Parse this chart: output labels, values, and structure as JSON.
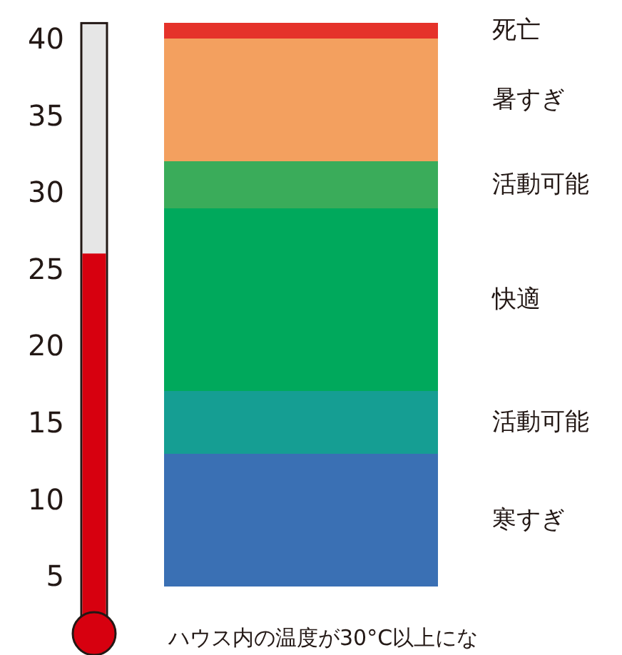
{
  "chart_data": [
    {
      "type": "bar",
      "categories": [
        null
      ],
      "values": [
        26
      ],
      "color": "#d7000f",
      "ylim": [
        2,
        41
      ],
      "yticks": [
        5,
        10,
        15,
        20,
        25,
        30,
        35,
        40
      ]
    },
    {
      "type": "other",
      "categories": [
        "死亡",
        "暑すぎ",
        "活動可能",
        "快適",
        "活動可能",
        "寒すぎ"
      ],
      "colors": [
        "#e5322a",
        "#f3a05f",
        "#3aac5a",
        "#00a95c",
        "#159e93",
        "#3a70b4"
      ],
      "annotations": [
        "ハウス内の温度が30°C以上にな"
      ]
    }
  ]
}
